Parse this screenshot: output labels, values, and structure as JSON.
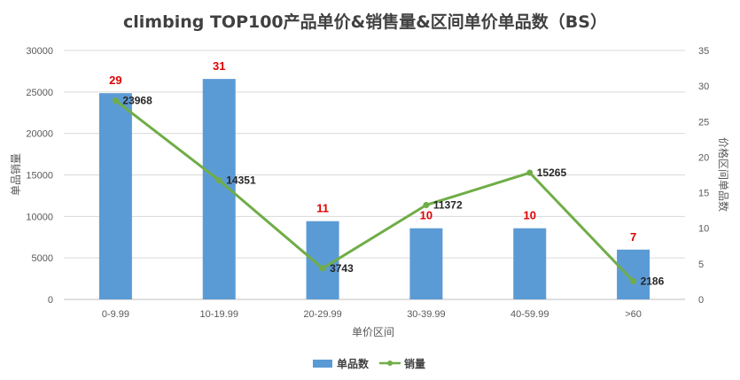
{
  "chart_data": {
    "type": "bar",
    "title": "climbing TOP100产品单价&销售量&区间单价单品数（BS）",
    "xlabel": "单价区间",
    "ylabel_left": "单品销量",
    "ylabel_right": "价格区间单品数",
    "categories": [
      "0-9.99",
      "10-19.99",
      "20-29.99",
      "30-39.99",
      "40-59.99",
      ">60"
    ],
    "y_left_ticks": [
      "0",
      "5000",
      "10000",
      "15000",
      "20000",
      "25000",
      "30000"
    ],
    "y_right_ticks": [
      "0",
      "5",
      "10",
      "15",
      "20",
      "25",
      "30",
      "35"
    ],
    "ylim_left": [
      0,
      30000
    ],
    "ylim_right": [
      0,
      35
    ],
    "grid": true,
    "legend_position": "bottom",
    "series": [
      {
        "name": "单品数",
        "type": "bar",
        "axis": "right",
        "color": "#5b9bd5",
        "values": [
          29,
          31,
          11,
          10,
          10,
          7
        ],
        "labels": [
          "29",
          "31",
          "11",
          "10",
          "10",
          "7"
        ]
      },
      {
        "name": "销量",
        "type": "line",
        "axis": "left",
        "color": "#70ad47",
        "values": [
          23968,
          14351,
          3743,
          11372,
          15265,
          2186
        ],
        "labels": [
          "23968",
          "14351",
          "3743",
          "11372",
          "15265",
          "2186"
        ]
      }
    ]
  }
}
